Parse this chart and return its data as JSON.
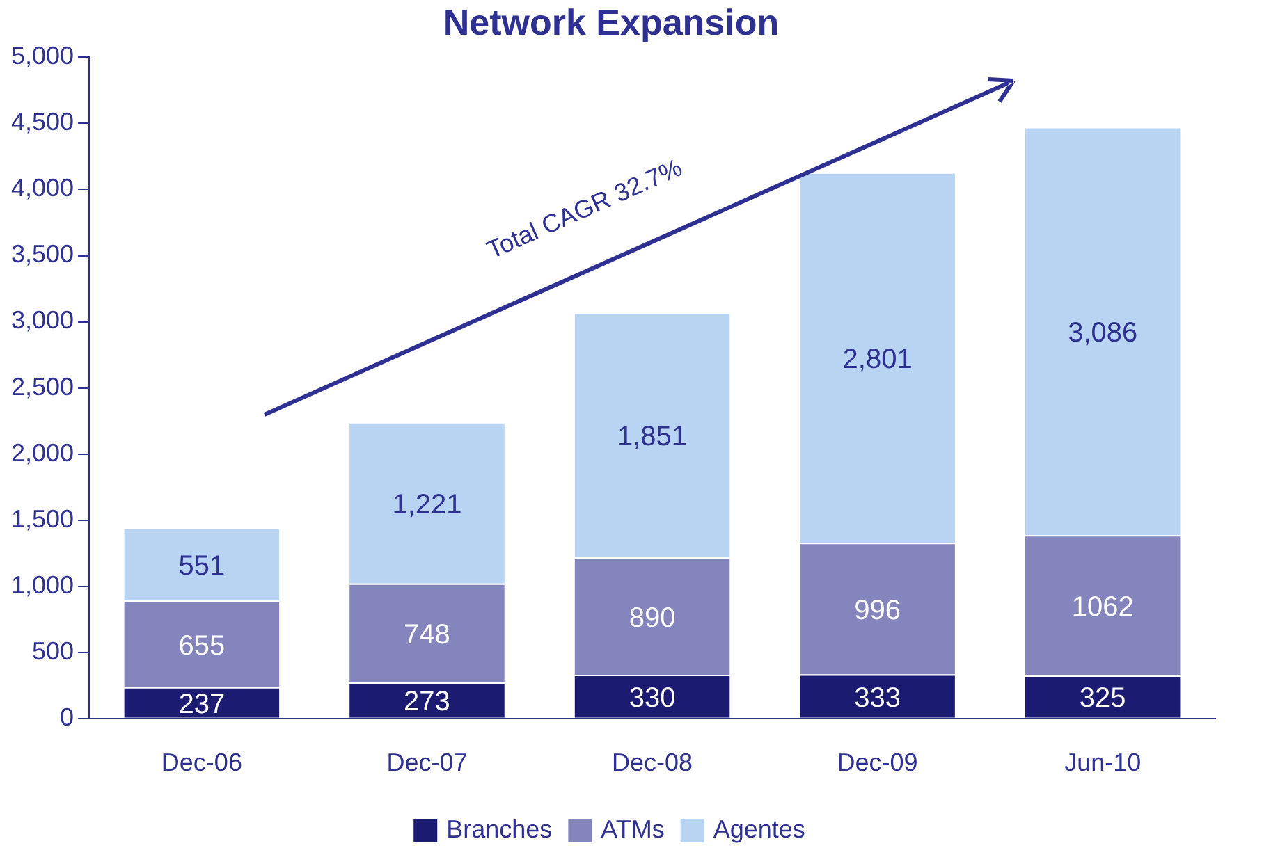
{
  "chart_data": {
    "type": "bar",
    "title": "Network Expansion",
    "stacked": true,
    "legend": "bottom",
    "grid": false,
    "categories": [
      "Dec-06",
      "Dec-07",
      "Dec-08",
      "Dec-09",
      "Jun-10"
    ],
    "series": [
      {
        "name": "Branches",
        "color": "#1b1b72",
        "values": [
          237,
          273,
          330,
          333,
          325
        ],
        "value_labels": [
          "237",
          "273",
          "330",
          "333",
          "325"
        ]
      },
      {
        "name": "ATMs",
        "color": "#8585bd",
        "values": [
          655,
          748,
          890,
          996,
          1062
        ],
        "value_labels": [
          "655",
          "748",
          "890",
          "996",
          "1062"
        ]
      },
      {
        "name": "Agentes",
        "color": "#b8d4f2",
        "values": [
          551,
          1221,
          1851,
          2801,
          3086
        ],
        "value_labels": [
          "551",
          "1,221",
          "1,851",
          "2,801",
          "3,086"
        ]
      }
    ],
    "ylim": [
      0,
      5000
    ],
    "yticks": [
      0,
      500,
      {
        "value": 1000,
        "label": "1,000"
      },
      {
        "value": 1500,
        "label": "1,500"
      },
      {
        "value": 2000,
        "label": "2,000"
      },
      {
        "value": 2500,
        "label": "2,500"
      },
      {
        "value": 3000,
        "label": "3,000"
      },
      {
        "value": 3500,
        "label": "3,500"
      },
      {
        "value": 4000,
        "label": "4,000"
      },
      {
        "value": 4500,
        "label": "4,500"
      },
      {
        "value": 5000,
        "label": "5,000"
      }
    ],
    "annotations": [
      "Total CAGR 32.7%"
    ]
  }
}
